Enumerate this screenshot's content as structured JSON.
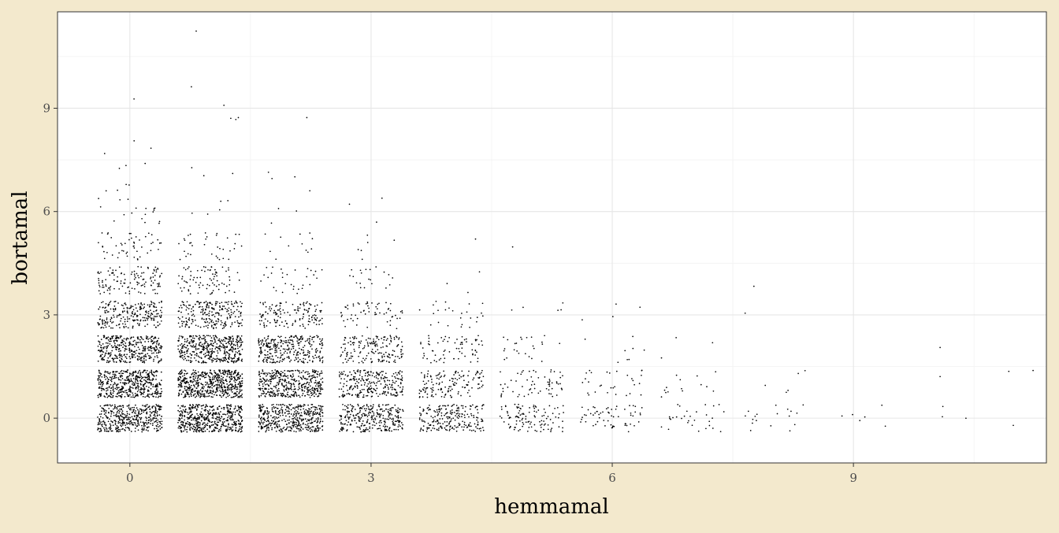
{
  "colors": {
    "page_background": "#f3e9cd",
    "panel_background": "#ffffff",
    "grid_major": "#e6e6e6",
    "grid_minor": "#f2f2f2",
    "panel_border": "#333333",
    "points": "#000000",
    "tick_labels": "#4d4d4d"
  },
  "chart_data": {
    "type": "scatter",
    "title": "",
    "xlabel": "hemmamal",
    "ylabel": "bortamal",
    "xlim": [
      -0.9,
      11.4
    ],
    "ylim": [
      -1.3,
      11.8
    ],
    "x_ticks": [
      0,
      3,
      6,
      9
    ],
    "x_tick_labels": [
      "0",
      "3",
      "6",
      "9"
    ],
    "y_ticks": [
      0,
      3,
      6,
      9
    ],
    "y_tick_labels": [
      "0",
      "3",
      "6",
      "9"
    ],
    "grid": true,
    "jittered": true,
    "jitter_width": 0.4,
    "jitter_height": 0.4,
    "point_counts_by_score": [
      [
        0,
        0,
        420
      ],
      [
        0,
        1,
        480
      ],
      [
        0,
        2,
        380
      ],
      [
        0,
        3,
        230
      ],
      [
        0,
        4,
        120
      ],
      [
        0,
        5,
        50
      ],
      [
        0,
        6,
        18
      ],
      [
        0,
        7,
        7
      ],
      [
        0,
        8,
        3
      ],
      [
        0,
        9,
        1
      ],
      [
        1,
        0,
        520
      ],
      [
        1,
        1,
        560
      ],
      [
        1,
        2,
        420
      ],
      [
        1,
        3,
        230
      ],
      [
        1,
        4,
        80
      ],
      [
        1,
        5,
        35
      ],
      [
        1,
        6,
        5
      ],
      [
        1,
        7,
        3
      ],
      [
        1,
        9,
        4
      ],
      [
        1,
        10,
        1
      ],
      [
        1,
        11,
        1
      ],
      [
        2,
        0,
        430
      ],
      [
        2,
        1,
        420
      ],
      [
        2,
        2,
        300
      ],
      [
        2,
        3,
        140
      ],
      [
        2,
        4,
        30
      ],
      [
        2,
        5,
        12
      ],
      [
        2,
        6,
        3
      ],
      [
        2,
        7,
        4
      ],
      [
        2,
        9,
        1
      ],
      [
        3,
        0,
        300
      ],
      [
        3,
        1,
        260
      ],
      [
        3,
        2,
        170
      ],
      [
        3,
        3,
        60
      ],
      [
        3,
        4,
        20
      ],
      [
        3,
        5,
        6
      ],
      [
        3,
        6,
        3
      ],
      [
        4,
        0,
        220
      ],
      [
        4,
        1,
        140
      ],
      [
        4,
        2,
        70
      ],
      [
        4,
        3,
        25
      ],
      [
        4,
        4,
        3
      ],
      [
        4,
        5,
        1
      ],
      [
        5,
        0,
        110
      ],
      [
        5,
        1,
        65
      ],
      [
        5,
        2,
        25
      ],
      [
        5,
        3,
        5
      ],
      [
        5,
        5,
        1
      ],
      [
        6,
        0,
        60
      ],
      [
        6,
        1,
        30
      ],
      [
        6,
        2,
        8
      ],
      [
        6,
        3,
        4
      ],
      [
        7,
        0,
        30
      ],
      [
        7,
        1,
        14
      ],
      [
        7,
        2,
        3
      ],
      [
        8,
        0,
        18
      ],
      [
        8,
        1,
        5
      ],
      [
        8,
        3,
        1
      ],
      [
        8,
        4,
        1
      ],
      [
        9,
        0,
        6
      ],
      [
        10,
        0,
        3
      ],
      [
        10,
        1,
        1
      ],
      [
        10,
        2,
        1
      ],
      [
        11,
        0,
        1
      ],
      [
        11,
        1,
        2
      ]
    ]
  }
}
